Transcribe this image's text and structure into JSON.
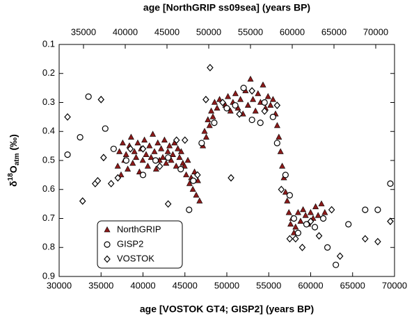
{
  "chart_data": {
    "type": "scatter",
    "title": "age [NorthGRIP ss09sea] (years BP)",
    "xlabel": "age [VOSTOK GT4; GISP2]  (years BP)",
    "ylabel": {
      "delta": "δ",
      "sup": "18",
      "main": "O",
      "sub": "atm",
      "unit": "(‰)"
    },
    "xlim": [
      30000,
      70000
    ],
    "xticks": [
      30000,
      35000,
      40000,
      45000,
      50000,
      55000,
      60000,
      65000,
      70000
    ],
    "x2lim": [
      32083,
      72250
    ],
    "x2ticks": [
      35000,
      40000,
      45000,
      50000,
      55000,
      60000,
      65000,
      70000
    ],
    "ylim": [
      0.1,
      0.9
    ],
    "yticks": [
      0.1,
      0.2,
      0.3,
      0.4,
      0.5,
      0.6,
      0.7,
      0.8,
      0.9
    ],
    "y_reversed": true,
    "legend": "lower left",
    "series": [
      {
        "name": "NorthGRIP",
        "color": "#8b1a1a",
        "marker": "triangle",
        "axis": "x2",
        "x": [
          39100,
          39300,
          39500,
          39700,
          39900,
          40100,
          40300,
          40500,
          40700,
          40900,
          41100,
          41300,
          41500,
          41700,
          41900,
          42100,
          42300,
          42500,
          42700,
          42900,
          43100,
          43300,
          43500,
          43700,
          43900,
          44100,
          44300,
          44500,
          44700,
          44900,
          45100,
          45300,
          45500,
          45700,
          45900,
          46100,
          46300,
          46500,
          46700,
          46900,
          47100,
          47300,
          47500,
          47700,
          47900,
          48100,
          48300,
          48500,
          48700,
          48900,
          49300,
          49500,
          49700,
          49900,
          50100,
          50300,
          50500,
          50700,
          51000,
          51300,
          52000,
          52300,
          52600,
          52900,
          53200,
          53500,
          53800,
          54100,
          54400,
          54700,
          55000,
          55300,
          55600,
          55900,
          56200,
          56500,
          56800,
          57100,
          57400,
          57700,
          58000,
          58200,
          58400,
          58600,
          58800,
          59000,
          59200,
          59400,
          59600,
          59800,
          60000,
          60200,
          60400,
          60700,
          61000,
          61300,
          61600,
          61900,
          62200,
          62500,
          62800,
          63100,
          63500,
          63900
        ],
        "values": [
          0.52,
          0.47,
          0.55,
          0.44,
          0.5,
          0.48,
          0.53,
          0.45,
          0.42,
          0.51,
          0.47,
          0.49,
          0.44,
          0.54,
          0.46,
          0.5,
          0.43,
          0.48,
          0.52,
          0.45,
          0.49,
          0.41,
          0.47,
          0.53,
          0.44,
          0.5,
          0.46,
          0.49,
          0.43,
          0.51,
          0.47,
          0.45,
          0.5,
          0.48,
          0.44,
          0.52,
          0.46,
          0.49,
          0.47,
          0.51,
          0.52,
          0.55,
          0.5,
          0.58,
          0.56,
          0.6,
          0.54,
          0.62,
          0.57,
          0.64,
          0.45,
          0.4,
          0.42,
          0.36,
          0.38,
          0.33,
          0.35,
          0.3,
          0.32,
          0.29,
          0.31,
          0.28,
          0.33,
          0.3,
          0.27,
          0.32,
          0.29,
          0.34,
          0.26,
          0.31,
          0.22,
          0.29,
          0.33,
          0.27,
          0.3,
          0.24,
          0.32,
          0.28,
          0.31,
          0.29,
          0.34,
          0.38,
          0.42,
          0.47,
          0.52,
          0.56,
          0.61,
          0.64,
          0.68,
          0.72,
          0.7,
          0.75,
          0.73,
          0.68,
          0.71,
          0.67,
          0.69,
          0.72,
          0.68,
          0.7,
          0.66,
          0.69,
          0.65,
          0.68
        ]
      },
      {
        "name": "GISP2",
        "color": "#000000",
        "marker": "circle",
        "x": [
          31000,
          32500,
          33500,
          35500,
          36500,
          38000,
          40000,
          41500,
          43000,
          44500,
          45500,
          46000,
          47000,
          48500,
          50000,
          51000,
          52000,
          53000,
          54000,
          54500,
          55500,
          56000,
          57000,
          57500,
          58000,
          58500,
          59500,
          60500,
          61500,
          62000,
          63000,
          64500,
          66500,
          68000,
          69500
        ],
        "values": [
          0.48,
          0.42,
          0.28,
          0.39,
          0.46,
          0.5,
          0.55,
          0.5,
          0.49,
          0.53,
          0.67,
          0.57,
          0.44,
          0.37,
          0.32,
          0.31,
          0.25,
          0.36,
          0.37,
          0.3,
          0.35,
          0.44,
          0.55,
          0.62,
          0.7,
          0.75,
          0.72,
          0.73,
          0.7,
          0.8,
          0.86,
          0.72,
          0.67,
          0.67,
          0.58
        ]
      },
      {
        "name": "VOSTOK",
        "color": "#000000",
        "marker": "diamond",
        "x": [
          31000,
          32800,
          34300,
          34600,
          35000,
          35300,
          36200,
          37000,
          38500,
          40000,
          42000,
          43000,
          44000,
          45000,
          46500,
          47500,
          48000,
          49500,
          50500,
          51500,
          53000,
          54500,
          56000,
          56500,
          57500,
          58200,
          59000,
          60000,
          61000,
          62500,
          63500,
          66500,
          68000,
          69500
        ],
        "values": [
          0.35,
          0.64,
          0.58,
          0.57,
          0.29,
          0.49,
          0.58,
          0.56,
          0.46,
          0.46,
          0.52,
          0.65,
          0.43,
          0.43,
          0.55,
          0.29,
          0.18,
          0.3,
          0.56,
          0.34,
          0.26,
          0.33,
          0.31,
          0.6,
          0.77,
          0.77,
          0.8,
          0.71,
          0.76,
          0.67,
          0.83,
          0.77,
          0.78,
          0.71
        ]
      }
    ]
  }
}
